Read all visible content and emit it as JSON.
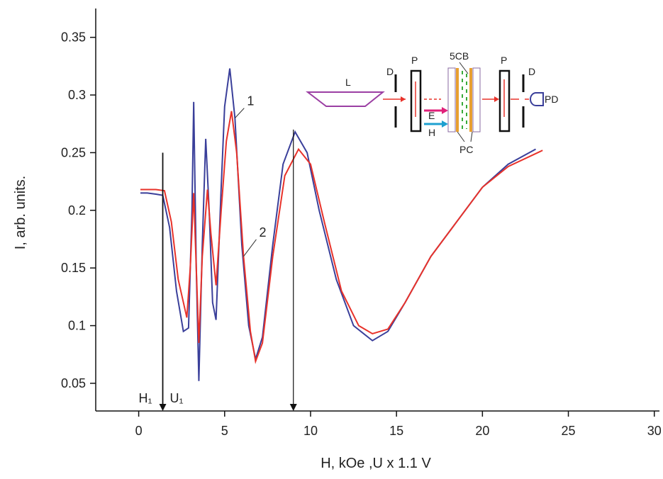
{
  "chart_data": {
    "type": "line",
    "xlabel": "H, kOe ,U x 1.1 V",
    "ylabel": "I, arb. units.",
    "xlim": [
      -2.5,
      30.3
    ],
    "ylim": [
      0.026,
      0.375
    ],
    "xticks": [
      0,
      5,
      10,
      15,
      20,
      25,
      30
    ],
    "yticks": [
      0.05,
      0.1,
      0.15,
      0.2,
      0.25,
      0.3,
      0.35
    ],
    "series": [
      {
        "name": "1",
        "color": "#3a3f9a",
        "x": [
          0.1,
          0.5,
          1.0,
          1.4,
          1.8,
          2.2,
          2.6,
          2.9,
          3.1,
          3.2,
          3.35,
          3.5,
          3.7,
          3.9,
          4.1,
          4.3,
          4.5,
          4.8,
          5.0,
          5.3,
          5.6,
          6.0,
          6.4,
          6.8,
          7.2,
          7.8,
          8.4,
          9.1,
          9.8,
          10.5,
          11.5,
          12.5,
          13.6,
          14.5,
          15.5,
          17,
          18.5,
          20,
          21.5,
          23.1
        ],
        "values": [
          0.215,
          0.215,
          0.214,
          0.213,
          0.185,
          0.13,
          0.095,
          0.098,
          0.2,
          0.294,
          0.15,
          0.052,
          0.17,
          0.262,
          0.2,
          0.12,
          0.105,
          0.22,
          0.29,
          0.323,
          0.28,
          0.17,
          0.1,
          0.071,
          0.09,
          0.17,
          0.24,
          0.268,
          0.25,
          0.2,
          0.14,
          0.1,
          0.087,
          0.095,
          0.12,
          0.16,
          0.19,
          0.22,
          0.24,
          0.253
        ]
      },
      {
        "name": "2",
        "color": "#e8322a",
        "x": [
          0.1,
          0.5,
          1.0,
          1.5,
          1.9,
          2.3,
          2.8,
          3.0,
          3.2,
          3.35,
          3.5,
          3.7,
          4.0,
          4.2,
          4.5,
          4.8,
          5.1,
          5.4,
          5.7,
          6.1,
          6.5,
          6.8,
          7.2,
          7.8,
          8.5,
          9.3,
          10,
          10.8,
          11.8,
          12.8,
          13.6,
          14.5,
          15.5,
          17,
          18.5,
          20,
          21.5,
          23.5
        ],
        "values": [
          0.218,
          0.218,
          0.218,
          0.217,
          0.19,
          0.14,
          0.107,
          0.15,
          0.215,
          0.15,
          0.085,
          0.16,
          0.218,
          0.18,
          0.135,
          0.2,
          0.26,
          0.286,
          0.25,
          0.16,
          0.095,
          0.069,
          0.085,
          0.16,
          0.23,
          0.253,
          0.24,
          0.19,
          0.13,
          0.1,
          0.093,
          0.097,
          0.12,
          0.16,
          0.19,
          0.22,
          0.238,
          0.252
        ]
      }
    ],
    "arrows": [
      {
        "label": "H₁",
        "label2": "U₁",
        "x": 1.4,
        "from": 0.25
      },
      {
        "x": 9.0,
        "from": 0.27
      }
    ],
    "inset_labels": {
      "laser": "L",
      "diaphragm1": "D",
      "polarizer1": "P",
      "cell": "5CB",
      "polarizer2": "P",
      "diaphragm2": "D",
      "detector": "PD",
      "efield": "E",
      "hfield": "H",
      "plates": "PC"
    }
  }
}
